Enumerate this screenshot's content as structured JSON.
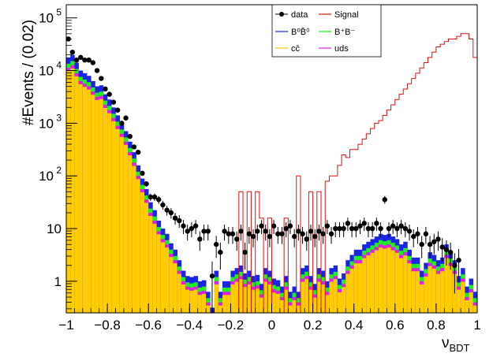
{
  "chart_data": {
    "type": "histogram",
    "xlabel": "ν",
    "xlabel_sub": "BDT",
    "ylabel": "#Events / (0.02)",
    "xlim": [
      -1,
      1
    ],
    "ylim_log10": [
      -0.6,
      5.25
    ],
    "log_y": true,
    "bin_width": 0.02,
    "x_ticks": [
      {
        "v": -1,
        "label": "−1"
      },
      {
        "v": -0.8,
        "label": "−0.8"
      },
      {
        "v": -0.6,
        "label": "−0.6"
      },
      {
        "v": -0.4,
        "label": "−0.4"
      },
      {
        "v": -0.2,
        "label": "−0.2"
      },
      {
        "v": 0,
        "label": "0"
      },
      {
        "v": 0.2,
        "label": "0.2"
      },
      {
        "v": 0.4,
        "label": "0.4"
      },
      {
        "v": 0.6,
        "label": "0.6"
      },
      {
        "v": 0.8,
        "label": "0.8"
      },
      {
        "v": 1,
        "label": "1"
      }
    ],
    "y_ticks": [
      {
        "v": 1,
        "label": "1"
      },
      {
        "v": 10,
        "label": "10"
      },
      {
        "v": 100,
        "label": "10",
        "exp": "2"
      },
      {
        "v": 1000,
        "label": "10",
        "exp": "3"
      },
      {
        "v": 10000,
        "label": "10",
        "exp": "4"
      },
      {
        "v": 100000,
        "label": "10",
        "exp": "5"
      }
    ],
    "legend": [
      {
        "name": "data",
        "kind": "marker",
        "color": "#000000"
      },
      {
        "name": "Signal",
        "kind": "line",
        "color": "#e01010"
      },
      {
        "name": "B⁰B̄⁰",
        "kind": "line",
        "color": "#1a24e6"
      },
      {
        "name": "B⁺B⁻",
        "kind": "line",
        "color": "#22ee22"
      },
      {
        "name": "cc̄",
        "kind": "line",
        "color": "#ffcc00"
      },
      {
        "name": "uds",
        "kind": "line",
        "color": "#e020e0"
      }
    ],
    "stack_order": [
      "cc̄",
      "uds",
      "B⁺B⁻",
      "B⁰B̄⁰"
    ],
    "stack_colors": [
      "#ffcc00",
      "#e020e0",
      "#22ee22",
      "#1a24e6"
    ],
    "background_total_log10": [
      4.25,
      4.3,
      4.15,
      4.0,
      3.95,
      3.9,
      3.8,
      3.7,
      3.72,
      3.55,
      3.45,
      3.3,
      3.15,
      3.0,
      2.85,
      2.65,
      2.45,
      2.2,
      1.95,
      1.75,
      1.5,
      1.35,
      1.15,
      1.0,
      0.9,
      0.72,
      0.6,
      0.4,
      0.2,
      0.1,
      0.08,
      0.1,
      0.0,
      0.02,
      -0.2,
      -0.5,
      0.2,
      -0.2,
      0.0,
      0.0,
      0.2,
      0.25,
      0.3,
      0.15,
      0.2,
      0.1,
      0.12,
      -0.05,
      0.25,
      0.2,
      0.05,
      0.02,
      -0.1,
      0.1,
      -0.2,
      -0.1,
      -0.2,
      0.25,
      0.3,
      0.1,
      -0.05,
      0.25,
      0.2,
      0.0,
      0.25,
      0.3,
      0.05,
      0.15,
      0.4,
      0.5,
      0.6,
      0.6,
      0.7,
      0.75,
      0.8,
      0.85,
      0.9,
      0.88,
      0.9,
      0.85,
      0.8,
      0.7,
      0.75,
      0.6,
      0.45,
      0.45,
      0.2,
      0.35,
      0.55,
      0.5,
      0.4,
      0.45,
      0.7,
      0.55,
      0.4,
      0.1,
      0.25,
      -0.1,
      0.05,
      -0.2
    ],
    "signal_log10": [
      -1,
      -1,
      -1,
      -1,
      -1,
      -1,
      -1,
      -1,
      -1,
      -1,
      -1,
      -1,
      -1,
      -1,
      -1,
      -1,
      -1,
      -1,
      -1,
      -1,
      -1,
      -1,
      -1,
      -1,
      -1,
      -1,
      -1,
      -1,
      -1,
      -1,
      -1,
      -1,
      -1,
      -1,
      -1,
      -1,
      -1,
      -1,
      -1,
      -1,
      -1,
      -1,
      1.7,
      -1,
      1.7,
      -1,
      1.7,
      1.2,
      -1,
      1.2,
      -1,
      -1,
      -1,
      1.2,
      -1,
      -1,
      2.0,
      -1,
      -1,
      1.7,
      -1,
      1.7,
      -1,
      1.9,
      2.0,
      2.0,
      2.2,
      2.4,
      2.35,
      2.5,
      2.5,
      2.6,
      2.7,
      2.8,
      2.9,
      3.0,
      3.05,
      3.15,
      3.25,
      3.35,
      3.45,
      3.55,
      3.65,
      3.75,
      3.85,
      3.95,
      4.05,
      4.15,
      4.25,
      4.35,
      4.45,
      4.5,
      4.55,
      4.6,
      4.6,
      4.65,
      4.7,
      4.7,
      4.6,
      4.25
    ],
    "data_points": [
      {
        "x": -0.99,
        "log10": 4.6
      },
      {
        "x": -0.97,
        "log10": 4.35
      },
      {
        "x": -0.95,
        "log10": 4.2
      },
      {
        "x": -0.93,
        "log10": 4.25
      },
      {
        "x": -0.91,
        "log10": 4.2
      },
      {
        "x": -0.89,
        "log10": 4.2
      },
      {
        "x": -0.87,
        "log10": 4.15
      },
      {
        "x": -0.85,
        "log10": 4.0
      },
      {
        "x": -0.83,
        "log10": 3.85
      },
      {
        "x": -0.81,
        "log10": 3.65
      },
      {
        "x": -0.79,
        "log10": 3.55
      },
      {
        "x": -0.77,
        "log10": 3.4
      },
      {
        "x": -0.75,
        "log10": 3.25
      },
      {
        "x": -0.73,
        "log10": 3.0
      },
      {
        "x": -0.71,
        "log10": 3.1
      },
      {
        "x": -0.69,
        "log10": 2.75
      },
      {
        "x": -0.67,
        "log10": 2.55
      },
      {
        "x": -0.65,
        "log10": 2.45
      },
      {
        "x": -0.63,
        "log10": 2.05
      },
      {
        "x": -0.61,
        "log10": 1.85
      },
      {
        "x": -0.59,
        "log10": 1.6
      },
      {
        "x": -0.57,
        "log10": 1.6
      },
      {
        "x": -0.55,
        "log10": 1.55
      },
      {
        "x": -0.53,
        "log10": 1.45
      },
      {
        "x": -0.51,
        "log10": 1.35
      },
      {
        "x": -0.49,
        "log10": 1.3
      },
      {
        "x": -0.47,
        "log10": 1.2
      },
      {
        "x": -0.45,
        "log10": 1.15
      },
      {
        "x": -0.43,
        "log10": 1.05
      },
      {
        "x": -0.41,
        "log10": 0.95
      },
      {
        "x": -0.39,
        "log10": 1.0
      },
      {
        "x": -0.37,
        "log10": 1.05
      },
      {
        "x": -0.35,
        "log10": 0.8
      },
      {
        "x": -0.33,
        "log10": 0.95
      },
      {
        "x": -0.31,
        "log10": 0.95
      },
      {
        "x": -0.29,
        "log10": 0.1
      },
      {
        "x": -0.27,
        "log10": 0.7
      },
      {
        "x": -0.25,
        "log10": 0.55
      },
      {
        "x": -0.23,
        "log10": 0.95
      },
      {
        "x": -0.21,
        "log10": 0.9
      },
      {
        "x": -0.19,
        "log10": 0.9
      },
      {
        "x": -0.17,
        "log10": 0.8
      },
      {
        "x": -0.15,
        "log10": 0.95
      },
      {
        "x": -0.13,
        "log10": 0.55
      },
      {
        "x": -0.11,
        "log10": 0.9
      },
      {
        "x": -0.09,
        "log10": 0.85
      },
      {
        "x": -0.07,
        "log10": 0.95
      },
      {
        "x": -0.05,
        "log10": 1.05
      },
      {
        "x": -0.03,
        "log10": 0.95
      },
      {
        "x": -0.01,
        "log10": 0.85
      },
      {
        "x": 0.01,
        "log10": 1.05
      },
      {
        "x": 0.03,
        "log10": 0.9
      },
      {
        "x": 0.05,
        "log10": 0.9
      },
      {
        "x": 0.07,
        "log10": 1.0
      },
      {
        "x": 0.09,
        "log10": 1.05
      },
      {
        "x": 0.11,
        "log10": 0.85
      },
      {
        "x": 0.13,
        "log10": 0.95
      },
      {
        "x": 0.15,
        "log10": 0.9
      },
      {
        "x": 0.17,
        "log10": 0.8
      },
      {
        "x": 0.19,
        "log10": 0.95
      },
      {
        "x": 0.21,
        "log10": 0.85
      },
      {
        "x": 0.23,
        "log10": 0.95
      },
      {
        "x": 0.25,
        "log10": 0.9
      },
      {
        "x": 0.27,
        "log10": 1.05
      },
      {
        "x": 0.29,
        "log10": 0.9
      },
      {
        "x": 0.31,
        "log10": 1.0
      },
      {
        "x": 0.33,
        "log10": 1.0
      },
      {
        "x": 0.35,
        "log10": 1.0
      },
      {
        "x": 0.37,
        "log10": 1.1
      },
      {
        "x": 0.39,
        "log10": 1.0
      },
      {
        "x": 0.41,
        "log10": 1.0
      },
      {
        "x": 0.43,
        "log10": 1.05
      },
      {
        "x": 0.45,
        "log10": 1.1
      },
      {
        "x": 0.47,
        "log10": 1.0
      },
      {
        "x": 0.49,
        "log10": 1.0
      },
      {
        "x": 0.51,
        "log10": 1.1
      },
      {
        "x": 0.53,
        "log10": 1.0
      },
      {
        "x": 0.55,
        "log10": 1.55
      },
      {
        "x": 0.57,
        "log10": 1.0
      },
      {
        "x": 0.59,
        "log10": 1.05
      },
      {
        "x": 0.61,
        "log10": 1.0
      },
      {
        "x": 0.63,
        "log10": 1.05
      },
      {
        "x": 0.65,
        "log10": 1.0
      },
      {
        "x": 0.67,
        "log10": 0.95
      },
      {
        "x": 0.69,
        "log10": 0.85
      },
      {
        "x": 0.71,
        "log10": 0.9
      },
      {
        "x": 0.73,
        "log10": 0.7
      },
      {
        "x": 0.75,
        "log10": 0.9
      },
      {
        "x": 0.77,
        "log10": 0.7
      },
      {
        "x": 0.79,
        "log10": 0.75
      },
      {
        "x": 0.81,
        "log10": 0.8
      },
      {
        "x": 0.83,
        "log10": 0.65
      },
      {
        "x": 0.85,
        "log10": 0.6
      },
      {
        "x": 0.87,
        "log10": 0.55
      },
      {
        "x": 0.89,
        "log10": 0.3
      },
      {
        "x": 0.91,
        "log10": 0.4
      }
    ]
  }
}
